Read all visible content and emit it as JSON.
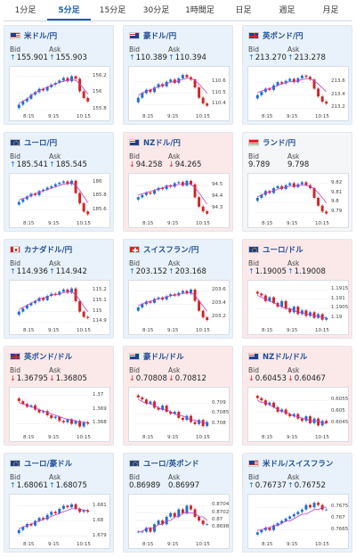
{
  "tabs": [
    {
      "label": "1分足",
      "active": false
    },
    {
      "label": "5分足",
      "active": true
    },
    {
      "label": "15分足",
      "active": false
    },
    {
      "label": "30分足",
      "active": false
    },
    {
      "label": "1時間足",
      "active": false
    },
    {
      "label": "日足",
      "active": false
    },
    {
      "label": "週足",
      "active": false
    },
    {
      "label": "月足",
      "active": false
    }
  ],
  "colors": {
    "up": "#1d6fd1",
    "down": "#d22222",
    "accent": "#1f4e95",
    "card_up": "#e9f2fb",
    "card_down": "#fbe9ea"
  },
  "pairs": [
    {
      "name": "米ドル/円",
      "flag": "flag-us",
      "tone": "up",
      "bid_label": "Bid",
      "ask_label": "Ask",
      "bid": "155.901",
      "ask": "155.903",
      "bid_dir": "up",
      "ask_dir": "up",
      "chart_data": {
        "type": "candlestick",
        "y_ticks": [
          "156.2",
          "156",
          "155.8"
        ],
        "x_ticks": [
          "8:15",
          "9:15",
          "10:15"
        ],
        "closes": [
          155.86,
          155.9,
          155.93,
          155.98,
          156.01,
          156.05,
          156.03,
          156.07,
          156.1,
          156.12,
          156.15,
          156.18,
          156.14,
          156.2,
          156.17,
          156.02,
          155.94,
          155.9
        ],
        "ma": [
          155.88,
          155.9,
          155.93,
          155.97,
          156,
          156.03,
          156.05,
          156.07,
          156.09,
          156.11,
          156.13,
          156.14,
          156.15,
          156.16,
          156.15,
          156.11,
          156.05,
          155.99
        ],
        "ylim": [
          155.78,
          156.27
        ]
      }
    },
    {
      "name": "豪ドル/円",
      "flag": "flag-au",
      "tone": "up",
      "bid_label": "Bid",
      "ask_label": "Ask",
      "bid": "110.389",
      "ask": "110.394",
      "bid_dir": "up",
      "ask_dir": "up",
      "chart_data": {
        "type": "candlestick",
        "y_ticks": [
          "110.6",
          "110.5",
          "110.4"
        ],
        "x_ticks": [
          "8:15",
          "9:15",
          "10:15"
        ],
        "closes": [
          110.46,
          110.5,
          110.53,
          110.51,
          110.55,
          110.58,
          110.56,
          110.6,
          110.62,
          110.59,
          110.63,
          110.66,
          110.64,
          110.62,
          110.55,
          110.46,
          110.41,
          110.39
        ],
        "ma": [
          110.48,
          110.5,
          110.52,
          110.53,
          110.54,
          110.56,
          110.57,
          110.58,
          110.6,
          110.6,
          110.61,
          110.62,
          110.63,
          110.63,
          110.61,
          110.58,
          110.54,
          110.5
        ],
        "ylim": [
          110.34,
          110.7
        ]
      }
    },
    {
      "name": "英ポンド/円",
      "flag": "flag-gb",
      "tone": "up",
      "bid_label": "Bid",
      "ask_label": "Ask",
      "bid": "213.270",
      "ask": "213.278",
      "bid_dir": "up",
      "ask_dir": "up",
      "chart_data": {
        "type": "candlestick",
        "y_ticks": [
          "213.6",
          "213.4",
          "213.2"
        ],
        "x_ticks": [
          "8:15",
          "9:15",
          "10:15"
        ],
        "closes": [
          213.4,
          213.45,
          213.5,
          213.48,
          213.55,
          213.6,
          213.58,
          213.62,
          213.65,
          213.6,
          213.66,
          213.7,
          213.68,
          213.64,
          213.5,
          213.38,
          213.3,
          213.27
        ],
        "ma": [
          213.44,
          213.46,
          213.49,
          213.5,
          213.52,
          213.55,
          213.57,
          213.59,
          213.61,
          213.61,
          213.62,
          213.64,
          213.65,
          213.65,
          213.62,
          213.57,
          213.51,
          213.45
        ],
        "ylim": [
          213.15,
          213.78
        ]
      }
    },
    {
      "name": "ユーロ/円",
      "flag": "flag-eu",
      "tone": "up",
      "bid_label": "Bid",
      "ask_label": "Ask",
      "bid": "185.541",
      "ask": "185.545",
      "bid_dir": "up",
      "ask_dir": "up",
      "chart_data": {
        "type": "candlestick",
        "y_ticks": [
          "186",
          "185.8",
          "185.6"
        ],
        "x_ticks": [
          "8:15",
          "9:15",
          "10:15"
        ],
        "closes": [
          185.72,
          185.76,
          185.8,
          185.84,
          185.82,
          185.88,
          185.9,
          185.93,
          185.95,
          185.98,
          186.0,
          186.02,
          185.98,
          186.03,
          185.85,
          185.7,
          185.58,
          185.54
        ],
        "ma": [
          185.75,
          185.77,
          185.79,
          185.82,
          185.84,
          185.86,
          185.88,
          185.9,
          185.92,
          185.94,
          185.96,
          185.98,
          185.99,
          186.0,
          185.96,
          185.89,
          185.8,
          185.71
        ],
        "ylim": [
          185.48,
          186.08
        ]
      }
    },
    {
      "name": "NZドル/円",
      "flag": "flag-nz",
      "tone": "down",
      "bid_label": "Bid",
      "ask_label": "Ask",
      "bid": "94.258",
      "ask": "94.265",
      "bid_dir": "down",
      "ask_dir": "down",
      "chart_data": {
        "type": "candlestick",
        "y_ticks": [
          "94.5",
          "94.4",
          "94.3"
        ],
        "x_ticks": [
          "8:15",
          "9:15",
          "10:15"
        ],
        "closes": [
          94.4,
          94.42,
          94.44,
          94.43,
          94.46,
          94.48,
          94.47,
          94.5,
          94.49,
          94.52,
          94.53,
          94.5,
          94.54,
          94.51,
          94.4,
          94.32,
          94.28,
          94.26
        ],
        "ma": [
          94.42,
          94.43,
          94.44,
          94.45,
          94.46,
          94.47,
          94.48,
          94.49,
          94.5,
          94.5,
          94.51,
          94.51,
          94.52,
          94.51,
          94.48,
          94.44,
          94.39,
          94.34
        ],
        "ylim": [
          94.22,
          94.57
        ]
      }
    },
    {
      "name": "ランド/円",
      "flag": "flag-za",
      "tone": "neutral",
      "bid_label": "Bid",
      "ask_label": "Ask",
      "bid": "9.789",
      "ask": "9.798",
      "bid_dir": "none",
      "ask_dir": "none",
      "chart_data": {
        "type": "candlestick",
        "y_ticks": [
          "9.82",
          "9.81",
          "9.8",
          "9.79"
        ],
        "x_ticks": [
          "8:15",
          "9:15",
          "10:15"
        ],
        "closes": [
          9.805,
          9.808,
          9.812,
          9.81,
          9.815,
          9.817,
          9.814,
          9.818,
          9.82,
          9.816,
          9.819,
          9.821,
          9.818,
          9.815,
          9.805,
          9.797,
          9.791,
          9.789
        ],
        "ma": [
          9.806,
          9.808,
          9.81,
          9.811,
          9.812,
          9.814,
          9.815,
          9.816,
          9.817,
          9.817,
          9.818,
          9.818,
          9.818,
          9.817,
          9.814,
          9.81,
          9.805,
          9.8
        ],
        "ylim": [
          9.784,
          9.826
        ]
      }
    },
    {
      "name": "カナダドル/円",
      "flag": "flag-ca",
      "tone": "up",
      "bid_label": "Bid",
      "ask_label": "Ask",
      "bid": "114.936",
      "ask": "114.942",
      "bid_dir": "up",
      "ask_dir": "up",
      "chart_data": {
        "type": "candlestick",
        "y_ticks": [
          "115.2",
          "115.1",
          "115",
          "114.9"
        ],
        "x_ticks": [
          "8:15",
          "9:15",
          "10:15"
        ],
        "closes": [
          115.0,
          115.03,
          115.06,
          115.08,
          115.1,
          115.13,
          115.11,
          115.15,
          115.17,
          115.16,
          115.19,
          115.21,
          115.18,
          115.22,
          115.1,
          115.0,
          114.95,
          114.94
        ],
        "ma": [
          115.02,
          115.04,
          115.06,
          115.08,
          115.1,
          115.12,
          115.13,
          115.14,
          115.16,
          115.16,
          115.17,
          115.18,
          115.19,
          115.19,
          115.16,
          115.11,
          115.05,
          115.0
        ],
        "ylim": [
          114.87,
          115.26
        ]
      }
    },
    {
      "name": "スイスフラン/円",
      "flag": "flag-ch",
      "tone": "up",
      "bid_label": "Bid",
      "ask_label": "Ask",
      "bid": "203.152",
      "ask": "203.168",
      "bid_dir": "up",
      "ask_dir": "up",
      "chart_data": {
        "type": "candlestick",
        "y_ticks": [
          "203.6",
          "203.4",
          "203.2"
        ],
        "x_ticks": [
          "8:15",
          "9:15",
          "10:15"
        ],
        "closes": [
          203.35,
          203.4,
          203.44,
          203.42,
          203.48,
          203.5,
          203.47,
          203.52,
          203.55,
          203.53,
          203.57,
          203.6,
          203.56,
          203.62,
          203.45,
          203.3,
          203.2,
          203.16
        ],
        "ma": [
          203.38,
          203.4,
          203.43,
          203.44,
          203.46,
          203.48,
          203.49,
          203.51,
          203.53,
          203.53,
          203.55,
          203.56,
          203.57,
          203.58,
          203.53,
          203.45,
          203.37,
          203.29
        ],
        "ylim": [
          203.08,
          203.7
        ]
      }
    },
    {
      "name": "ユーロ/ドル",
      "flag": "flag-eu",
      "tone": "down",
      "bid_label": "Bid",
      "ask_label": "Ask",
      "bid": "1.19005",
      "ask": "1.19008",
      "bid_dir": "up",
      "ask_dir": "up",
      "chart_data": {
        "type": "candlestick",
        "y_ticks": [
          "1.1915",
          "1.191",
          "1.1905",
          "1.19"
        ],
        "x_ticks": [
          "8:15",
          "9:15",
          "10:15"
        ],
        "closes": [
          1.1913,
          1.1912,
          1.1909,
          1.1911,
          1.1908,
          1.1906,
          1.1909,
          1.1905,
          1.1903,
          1.1906,
          1.1902,
          1.1904,
          1.1901,
          1.1903,
          1.19,
          1.1902,
          1.1899,
          1.19
        ],
        "ma": [
          1.1912,
          1.1911,
          1.191,
          1.1909,
          1.1908,
          1.1907,
          1.1906,
          1.1905,
          1.1905,
          1.1904,
          1.1903,
          1.1903,
          1.1902,
          1.1902,
          1.1901,
          1.1901,
          1.19,
          1.19
        ],
        "ylim": [
          1.1896,
          1.1918
        ]
      }
    },
    {
      "name": "英ポンド/ドル",
      "flag": "flag-gb",
      "tone": "down",
      "bid_label": "Bid",
      "ask_label": "Ask",
      "bid": "1.36795",
      "ask": "1.36805",
      "bid_dir": "down",
      "ask_dir": "down",
      "chart_data": {
        "type": "candlestick",
        "y_ticks": [
          "1.37",
          "1.369",
          "1.368"
        ],
        "x_ticks": [
          "8:15",
          "9:15",
          "10:15"
        ],
        "closes": [
          1.3696,
          1.3694,
          1.3692,
          1.3693,
          1.369,
          1.3688,
          1.3689,
          1.3686,
          1.3684,
          1.3685,
          1.3682,
          1.3681,
          1.3683,
          1.368,
          1.3682,
          1.3678,
          1.3681,
          1.368
        ],
        "ma": [
          1.3695,
          1.3694,
          1.3693,
          1.3692,
          1.3691,
          1.369,
          1.3689,
          1.3688,
          1.3687,
          1.3686,
          1.3685,
          1.3684,
          1.3683,
          1.3683,
          1.3682,
          1.3681,
          1.3681,
          1.3681
        ],
        "ylim": [
          1.3674,
          1.3703
        ]
      }
    },
    {
      "name": "豪ドル/ドル",
      "flag": "flag-au",
      "tone": "down",
      "bid_label": "Bid",
      "ask_label": "Ask",
      "bid": "0.70808",
      "ask": "0.70812",
      "bid_dir": "down",
      "ask_dir": "down",
      "chart_data": {
        "type": "candlestick",
        "y_ticks": [
          "0.709",
          "0.7085",
          "0.708"
        ],
        "x_ticks": [
          "8:15",
          "9:15",
          "10:15"
        ],
        "closes": [
          0.7093,
          0.7092,
          0.709,
          0.7091,
          0.7088,
          0.7087,
          0.7089,
          0.7086,
          0.7085,
          0.7086,
          0.7083,
          0.7082,
          0.7084,
          0.7081,
          0.708,
          0.7082,
          0.7079,
          0.7081
        ],
        "ma": [
          0.7092,
          0.7091,
          0.709,
          0.709,
          0.7089,
          0.7088,
          0.7087,
          0.7087,
          0.7086,
          0.7085,
          0.7084,
          0.7084,
          0.7083,
          0.7082,
          0.7082,
          0.7081,
          0.7081,
          0.708
        ],
        "ylim": [
          0.7076,
          0.7096
        ]
      }
    },
    {
      "name": "NZドル/ドル",
      "flag": "flag-nz",
      "tone": "down",
      "bid_label": "Bid",
      "ask_label": "Ask",
      "bid": "0.60453",
      "ask": "0.60467",
      "bid_dir": "down",
      "ask_dir": "down",
      "chart_data": {
        "type": "candlestick",
        "y_ticks": [
          "0.6055",
          "0.605",
          "0.6045"
        ],
        "x_ticks": [
          "8:15",
          "9:15",
          "10:15"
        ],
        "closes": [
          0.6056,
          0.6055,
          0.6053,
          0.6054,
          0.6052,
          0.605,
          0.6051,
          0.6049,
          0.6048,
          0.6049,
          0.6047,
          0.6046,
          0.6048,
          0.6045,
          0.6047,
          0.6044,
          0.6046,
          0.6045
        ],
        "ma": [
          0.6055,
          0.6054,
          0.6054,
          0.6053,
          0.6052,
          0.6051,
          0.605,
          0.605,
          0.6049,
          0.6048,
          0.6048,
          0.6047,
          0.6047,
          0.6046,
          0.6046,
          0.6046,
          0.6045,
          0.6045
        ],
        "ylim": [
          0.6041,
          0.6059
        ]
      }
    },
    {
      "name": "ユーロ/豪ドル",
      "flag": "flag-eu",
      "tone": "up",
      "bid_label": "Bid",
      "ask_label": "Ask",
      "bid": "1.68061",
      "ask": "1.68075",
      "bid_dir": "up",
      "ask_dir": "up",
      "chart_data": {
        "type": "candlestick",
        "y_ticks": [
          "1.681",
          "1.68",
          "1.679"
        ],
        "x_ticks": [
          "8:15",
          "9:15",
          "10:15"
        ],
        "closes": [
          1.6794,
          1.6796,
          1.6798,
          1.6797,
          1.68,
          1.6802,
          1.6801,
          1.6804,
          1.6806,
          1.6805,
          1.6808,
          1.681,
          1.6809,
          1.6811,
          1.6808,
          1.6806,
          1.6807,
          1.6806
        ],
        "ma": [
          1.6795,
          1.6796,
          1.6797,
          1.6798,
          1.6799,
          1.68,
          1.6801,
          1.6802,
          1.6803,
          1.6804,
          1.6805,
          1.6806,
          1.6807,
          1.6808,
          1.6808,
          1.6808,
          1.6807,
          1.6807
        ],
        "ylim": [
          1.6788,
          1.6815
        ]
      }
    },
    {
      "name": "ユーロ/英ポンド",
      "flag": "flag-eu",
      "tone": "up",
      "bid_label": "Bid",
      "ask_label": "Ask",
      "bid": "0.86989",
      "ask": "0.86997",
      "bid_dir": "none",
      "ask_dir": "none",
      "chart_data": {
        "type": "candlestick",
        "y_ticks": [
          "0.8704",
          "0.8702",
          "0.87",
          "0.8698"
        ],
        "x_ticks": [
          "8:15",
          "9:15",
          "10:15"
        ],
        "closes": [
          0.8697,
          0.8697,
          0.8698,
          0.8697,
          0.8699,
          0.87,
          0.8699,
          0.8701,
          0.8702,
          0.8701,
          0.8703,
          0.8702,
          0.8704,
          0.8703,
          0.8701,
          0.87,
          0.8699,
          0.8699
        ],
        "ma": [
          0.8697,
          0.8697,
          0.8698,
          0.8698,
          0.8698,
          0.8699,
          0.8699,
          0.87,
          0.87,
          0.8701,
          0.8701,
          0.8702,
          0.8702,
          0.8702,
          0.8702,
          0.8701,
          0.8701,
          0.87
        ],
        "ylim": [
          0.8695,
          0.8706
        ]
      }
    },
    {
      "name": "米ドル/スイスフラン",
      "flag": "flag-us",
      "tone": "up",
      "bid_label": "Bid",
      "ask_label": "Ask",
      "bid": "0.76737",
      "ask": "0.76752",
      "bid_dir": "up",
      "ask_dir": "up",
      "chart_data": {
        "type": "candlestick",
        "y_ticks": [
          "0.7675",
          "0.767",
          "0.7665"
        ],
        "x_ticks": [
          "8:15",
          "9:15",
          "10:15"
        ],
        "closes": [
          0.7664,
          0.7665,
          0.7666,
          0.7665,
          0.7667,
          0.7668,
          0.7669,
          0.767,
          0.7671,
          0.7672,
          0.7673,
          0.7674,
          0.7676,
          0.7675,
          0.7677,
          0.7676,
          0.7674,
          0.7674
        ],
        "ma": [
          0.7665,
          0.7665,
          0.7666,
          0.7666,
          0.7667,
          0.7667,
          0.7668,
          0.7669,
          0.7669,
          0.767,
          0.7671,
          0.7672,
          0.7672,
          0.7673,
          0.7674,
          0.7674,
          0.7675,
          0.7675
        ],
        "ylim": [
          0.7661,
          0.7679
        ]
      }
    }
  ]
}
